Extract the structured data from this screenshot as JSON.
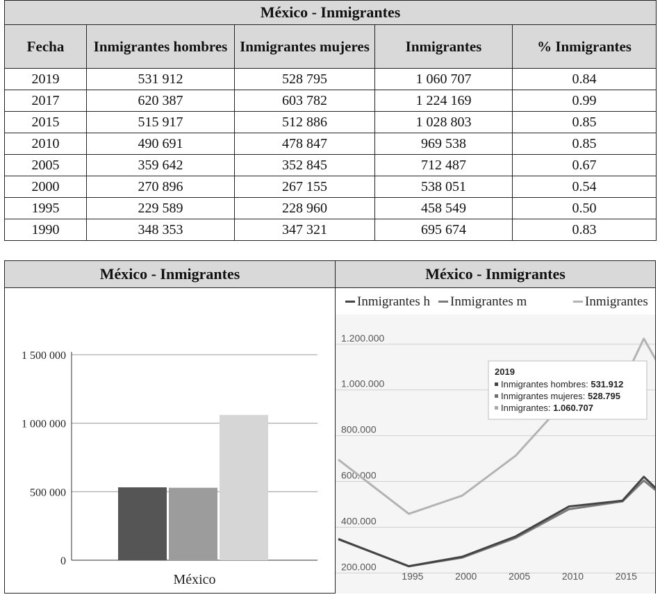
{
  "table": {
    "title": "México - Inmigrantes",
    "headers": [
      "Fecha",
      "Inmigrantes hombres",
      "Inmigrantes mujeres",
      "Inmigrantes",
      "% Inmigrantes"
    ],
    "rows": [
      [
        "2019",
        "531 912",
        "528 795",
        "1 060 707",
        "0.84"
      ],
      [
        "2017",
        "620 387",
        "603 782",
        "1 224 169",
        "0.99"
      ],
      [
        "2015",
        "515 917",
        "512 886",
        "1 028 803",
        "0.85"
      ],
      [
        "2010",
        "490 691",
        "478 847",
        "969 538",
        "0.85"
      ],
      [
        "2005",
        "359 642",
        "352 845",
        "712 487",
        "0.67"
      ],
      [
        "2000",
        "270 896",
        "267 155",
        "538 051",
        "0.54"
      ],
      [
        "1995",
        "229 589",
        "228 960",
        "458 549",
        "0.50"
      ],
      [
        "1990",
        "348 353",
        "347 321",
        "695 674",
        "0.83"
      ]
    ]
  },
  "chart_data": [
    {
      "type": "bar",
      "title": "México - Inmigrantes",
      "categories": [
        "México"
      ],
      "series": [
        {
          "values": [
            531912
          ],
          "color": "#555555"
        },
        {
          "values": [
            528795
          ],
          "color": "#9c9c9c"
        },
        {
          "values": [
            1060707
          ],
          "color": "#d6d6d6"
        }
      ],
      "yticks": [
        0,
        500000,
        1000000,
        1500000
      ],
      "ytick_labels": [
        "0",
        "500 000",
        "1 000 000",
        "1 500 000"
      ],
      "ylim": [
        0,
        1500000
      ],
      "grid": true
    },
    {
      "type": "line",
      "title": "México - Inmigrantes",
      "legend": [
        "Inmigrantes h",
        "Inmigrantes m",
        "Inmigrantes"
      ],
      "x": [
        1990,
        1995,
        2000,
        2005,
        2010,
        2015,
        2017,
        2019
      ],
      "series": [
        {
          "name": "Inmigrantes h",
          "values": [
            348353,
            229589,
            270896,
            359642,
            490691,
            515917,
            620387,
            531912
          ],
          "color": "#444444"
        },
        {
          "name": "Inmigrantes m",
          "values": [
            347321,
            228960,
            267155,
            352845,
            478847,
            512886,
            603782,
            528795
          ],
          "color": "#7a7a7a"
        },
        {
          "name": "Inmigrantes",
          "values": [
            695674,
            458549,
            538051,
            712487,
            969538,
            1028803,
            1224169,
            1060707
          ],
          "color": "#b3b3b3"
        }
      ],
      "yticks": [
        200000,
        400000,
        600000,
        800000,
        1000000,
        1200000
      ],
      "ytick_labels": [
        "200.000",
        "400.000",
        "600.000",
        "800.000",
        "1.000.000",
        "1.200.000"
      ],
      "xticks": [
        1995,
        2000,
        2005,
        2010,
        2015
      ],
      "ylim": [
        110000,
        1330000
      ],
      "legend_position": "top",
      "tooltip": {
        "title": "2019",
        "lines": [
          {
            "label": "Inmigrantes hombres: ",
            "value": "531.912"
          },
          {
            "label": "Inmigrantes mujeres: ",
            "value": "528.795"
          },
          {
            "label": "Inmigrantes: ",
            "value": "1.060.707"
          }
        ]
      }
    }
  ]
}
